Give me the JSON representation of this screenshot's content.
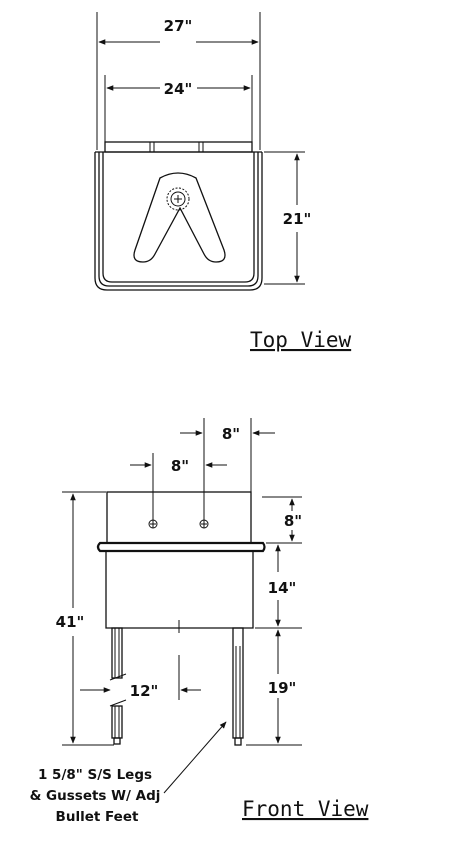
{
  "top_view": {
    "dim_overall_width": "27\"",
    "dim_bowl_width": "24\"",
    "dim_depth": "21\"",
    "label": "Top View"
  },
  "front_view": {
    "dim_faucet_spacing": "8\"",
    "dim_right_offset": "8\"",
    "dim_backsplash": "8\"",
    "dim_bowl_depth": "14\"",
    "dim_overall_height": "41\"",
    "dim_leg_height": "19\"",
    "dim_leg_spacing": "12\"",
    "legs_note": [
      "1 5/8\" S/S Legs",
      "& Gussets W/ Adj",
      "Bullet Feet"
    ],
    "label": "Front View"
  }
}
